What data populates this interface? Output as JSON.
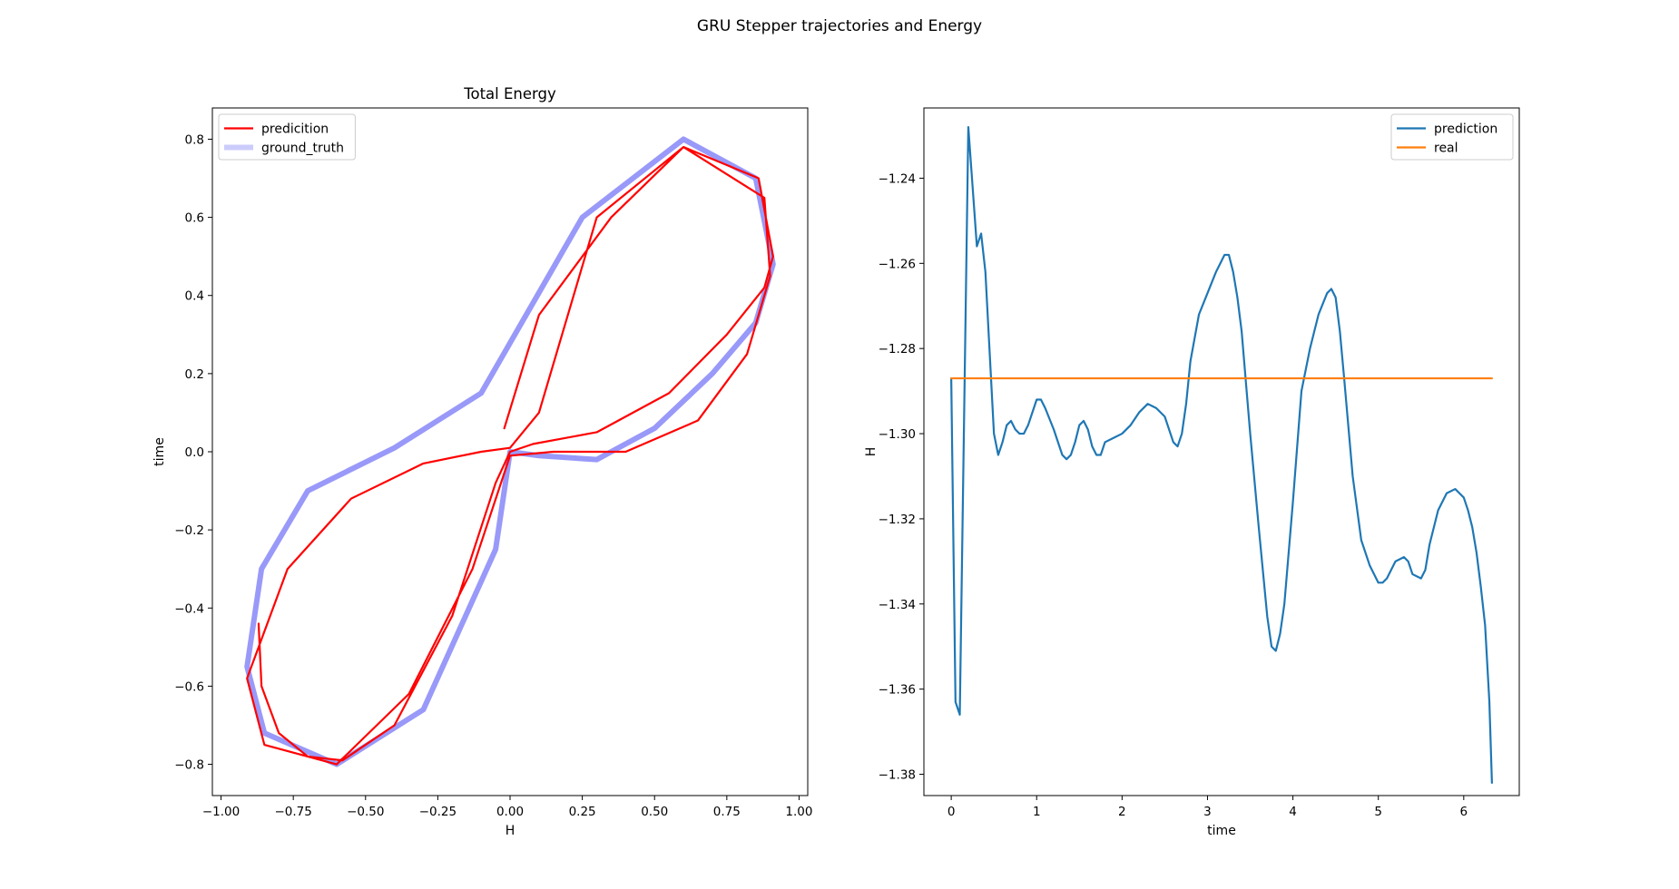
{
  "figure": {
    "suptitle": "GRU Stepper trajectories and Energy"
  },
  "chart_data": [
    {
      "type": "line",
      "title": "Total Energy",
      "xlabel": "H",
      "ylabel": "time",
      "xlim": [
        -1.03,
        1.03
      ],
      "ylim": [
        -0.88,
        0.88
      ],
      "xticks": [
        -1.0,
        -0.75,
        -0.5,
        -0.25,
        0.0,
        0.25,
        0.5,
        0.75,
        1.0
      ],
      "xtick_labels": [
        "−1.00",
        "−0.75",
        "−0.50",
        "−0.25",
        "0.00",
        "0.25",
        "0.50",
        "0.75",
        "1.00"
      ],
      "yticks": [
        -0.8,
        -0.6,
        -0.4,
        -0.2,
        0.0,
        0.2,
        0.4,
        0.6,
        0.8
      ],
      "ytick_labels": [
        "−0.8",
        "−0.6",
        "−0.4",
        "−0.2",
        "0.0",
        "0.2",
        "0.4",
        "0.6",
        "0.8"
      ],
      "grid": false,
      "legend": "top-left",
      "series": [
        {
          "name": "ground_truth",
          "color": "#8080f8",
          "x": [
            0.0,
            0.1,
            0.3,
            0.5,
            0.7,
            0.85,
            0.91,
            0.85,
            0.6,
            0.25,
            -0.1,
            -0.4,
            -0.7,
            -0.86,
            -0.91,
            -0.85,
            -0.6,
            -0.3,
            -0.05,
            0.0
          ],
          "y": [
            0.0,
            -0.01,
            -0.02,
            0.06,
            0.2,
            0.33,
            0.48,
            0.7,
            0.8,
            0.6,
            0.15,
            0.01,
            -0.1,
            -0.3,
            -0.55,
            -0.72,
            -0.8,
            -0.66,
            -0.25,
            0.0
          ]
        },
        {
          "name": "predicition",
          "color": "#ff0000",
          "x": [
            -0.87,
            -0.86,
            -0.8,
            -0.7,
            -0.58,
            -0.4,
            -0.2,
            -0.05,
            0.0,
            0.08,
            0.3,
            0.55,
            0.75,
            0.88,
            0.91,
            0.86,
            0.6,
            0.3,
            0.1,
            0.0,
            -0.1,
            -0.3,
            -0.55,
            -0.77,
            -0.87,
            -0.91,
            -0.85,
            -0.6,
            -0.35,
            -0.13,
            0.0,
            0.15,
            0.4,
            0.65,
            0.82,
            0.9,
            0.88,
            0.6,
            0.35,
            0.1,
            -0.02
          ],
          "y": [
            -0.44,
            -0.6,
            -0.72,
            -0.78,
            -0.79,
            -0.7,
            -0.42,
            -0.08,
            0.0,
            0.02,
            0.05,
            0.15,
            0.3,
            0.42,
            0.5,
            0.7,
            0.78,
            0.6,
            0.1,
            0.01,
            0.0,
            -0.03,
            -0.12,
            -0.3,
            -0.5,
            -0.58,
            -0.75,
            -0.8,
            -0.62,
            -0.3,
            -0.01,
            0.0,
            0.0,
            0.08,
            0.25,
            0.45,
            0.65,
            0.78,
            0.6,
            0.35,
            0.06
          ]
        }
      ]
    },
    {
      "type": "line",
      "title": "",
      "xlabel": "time",
      "ylabel": "H",
      "xlim": [
        -0.32,
        6.65
      ],
      "ylim": [
        -1.385,
        -1.2235
      ],
      "xticks": [
        0,
        1,
        2,
        3,
        4,
        5,
        6
      ],
      "xtick_labels": [
        "0",
        "1",
        "2",
        "3",
        "4",
        "5",
        "6"
      ],
      "yticks": [
        -1.38,
        -1.36,
        -1.34,
        -1.32,
        -1.3,
        -1.28,
        -1.26,
        -1.24
      ],
      "ytick_labels": [
        "−1.38",
        "−1.36",
        "−1.34",
        "−1.32",
        "−1.30",
        "−1.28",
        "−1.26",
        "−1.24"
      ],
      "grid": false,
      "legend": "top-right",
      "series": [
        {
          "name": "prediction",
          "color": "#1f77b4",
          "x": [
            0.0,
            0.05,
            0.1,
            0.2,
            0.25,
            0.3,
            0.35,
            0.4,
            0.5,
            0.55,
            0.6,
            0.65,
            0.7,
            0.75,
            0.8,
            0.85,
            0.9,
            0.95,
            1.0,
            1.05,
            1.1,
            1.2,
            1.3,
            1.35,
            1.4,
            1.45,
            1.5,
            1.55,
            1.6,
            1.65,
            1.7,
            1.75,
            1.8,
            1.9,
            2.0,
            2.1,
            2.2,
            2.3,
            2.4,
            2.5,
            2.6,
            2.65,
            2.7,
            2.75,
            2.8,
            2.9,
            3.0,
            3.1,
            3.2,
            3.25,
            3.3,
            3.35,
            3.4,
            3.5,
            3.6,
            3.7,
            3.75,
            3.8,
            3.85,
            3.9,
            4.0,
            4.1,
            4.2,
            4.3,
            4.4,
            4.45,
            4.5,
            4.55,
            4.6,
            4.7,
            4.8,
            4.9,
            5.0,
            5.05,
            5.1,
            5.2,
            5.3,
            5.35,
            5.4,
            5.5,
            5.55,
            5.6,
            5.7,
            5.8,
            5.9,
            5.95,
            6.0,
            6.05,
            6.1,
            6.15,
            6.2,
            6.25,
            6.3,
            6.33
          ],
          "y": [
            -1.287,
            -1.363,
            -1.366,
            -1.228,
            -1.242,
            -1.256,
            -1.253,
            -1.262,
            -1.3,
            -1.305,
            -1.302,
            -1.298,
            -1.297,
            -1.299,
            -1.3,
            -1.3,
            -1.298,
            -1.295,
            -1.292,
            -1.292,
            -1.294,
            -1.299,
            -1.305,
            -1.306,
            -1.305,
            -1.302,
            -1.298,
            -1.297,
            -1.299,
            -1.303,
            -1.305,
            -1.305,
            -1.302,
            -1.301,
            -1.3,
            -1.298,
            -1.295,
            -1.293,
            -1.294,
            -1.296,
            -1.302,
            -1.303,
            -1.3,
            -1.293,
            -1.283,
            -1.272,
            -1.267,
            -1.262,
            -1.258,
            -1.258,
            -1.262,
            -1.268,
            -1.276,
            -1.3,
            -1.322,
            -1.343,
            -1.35,
            -1.351,
            -1.347,
            -1.34,
            -1.316,
            -1.29,
            -1.28,
            -1.272,
            -1.267,
            -1.266,
            -1.268,
            -1.276,
            -1.287,
            -1.31,
            -1.325,
            -1.331,
            -1.335,
            -1.335,
            -1.334,
            -1.33,
            -1.329,
            -1.33,
            -1.333,
            -1.334,
            -1.332,
            -1.326,
            -1.318,
            -1.314,
            -1.313,
            -1.314,
            -1.315,
            -1.318,
            -1.322,
            -1.328,
            -1.336,
            -1.345,
            -1.363,
            -1.382
          ]
        },
        {
          "name": "real",
          "color": "#ff7f0e",
          "x": [
            0.0,
            6.33
          ],
          "y": [
            -1.287,
            -1.287
          ]
        }
      ]
    }
  ]
}
